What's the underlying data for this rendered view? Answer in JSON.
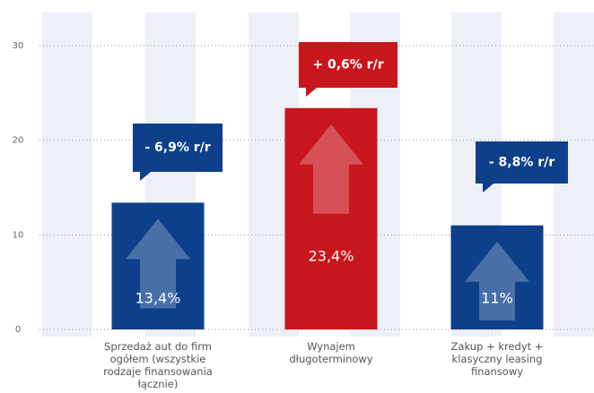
{
  "chart_data": {
    "type": "bar",
    "categories": [
      "Sprzedaż aut do firm ogółem (wszystkie rodzaje finansowania łącznie)",
      "Wynajem długoterminowy",
      "Zakup + kredyt + klasyczny leasing finansowy"
    ],
    "values": [
      13.4,
      23.4,
      11
    ],
    "value_labels": [
      "13,4%",
      "23,4%",
      "11%"
    ],
    "colors": [
      "#0d3f8a",
      "#c8161d",
      "#0d3f8a"
    ],
    "annotations": [
      "- 6,9% r/r",
      "+ 0,6% r/r",
      "- 8,8% r/r"
    ],
    "ylim": [
      0,
      30
    ],
    "yticks": [
      0,
      10,
      20,
      30
    ],
    "grid": true
  }
}
